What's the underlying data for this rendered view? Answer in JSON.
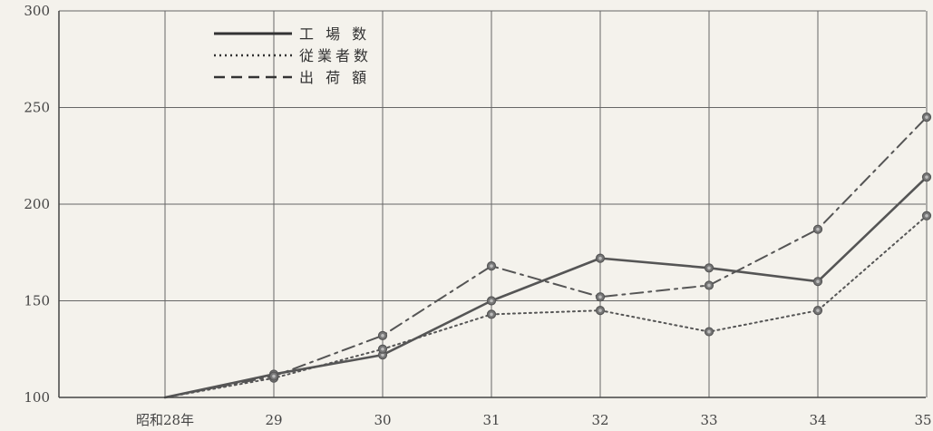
{
  "chart_data": {
    "type": "line",
    "title": "",
    "xlabel": "",
    "ylabel": "",
    "x": [
      "昭和28年",
      "29",
      "30",
      "31",
      "32",
      "33",
      "34",
      "35"
    ],
    "ylim": [
      100,
      300
    ],
    "yticks": [
      "100",
      "150",
      "200",
      "250",
      "300"
    ],
    "grid": true,
    "legend_position": "top-left",
    "series": [
      {
        "name": "工 場 数",
        "style": "solid",
        "color": "#555555",
        "values": [
          100,
          112,
          122,
          150,
          172,
          167,
          160,
          214
        ]
      },
      {
        "name": "従業者数",
        "style": "dotted",
        "color": "#555555",
        "values": [
          100,
          110,
          125,
          143,
          145,
          134,
          145,
          194
        ]
      },
      {
        "name": "出 荷 額",
        "style": "dashdot",
        "color": "#555555",
        "values": [
          100,
          111,
          132,
          168,
          152,
          158,
          187,
          245
        ]
      }
    ]
  }
}
